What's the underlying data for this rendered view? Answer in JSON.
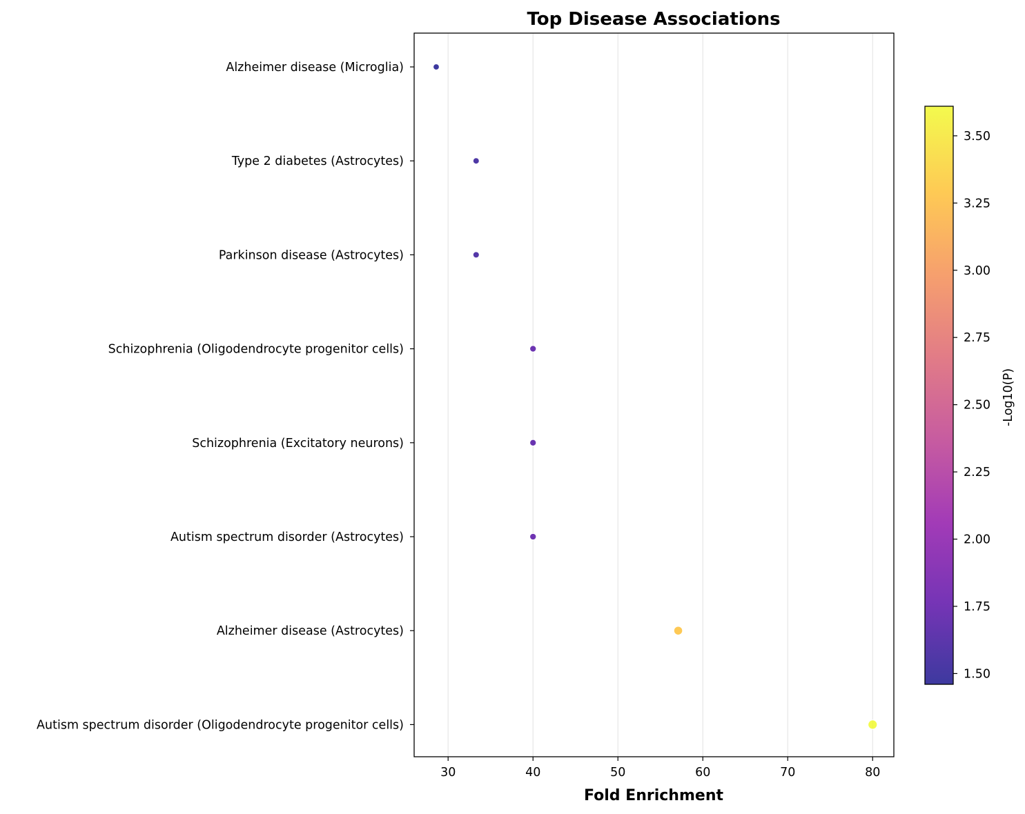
{
  "chart_data": {
    "type": "scatter",
    "title": "Top Disease Associations",
    "xlabel": "Fold Enrichment",
    "ylabel": "",
    "xlim": [
      26.0,
      82.5
    ],
    "xticks": [
      30,
      40,
      50,
      60,
      70,
      80
    ],
    "grid": "vertical",
    "categories": [
      "Alzheimer disease (Microglia)",
      "Type 2 diabetes (Astrocytes)",
      "Parkinson disease (Astrocytes)",
      "Schizophrenia (Oligodendrocyte progenitor cells)",
      "Schizophrenia (Excitatory neurons)",
      "Autism spectrum disorder (Astrocytes)",
      "Alzheimer disease (Astrocytes)",
      "Autism spectrum disorder (Oligodendrocyte progenitor cells)"
    ],
    "points": [
      {
        "category": "Alzheimer disease (Microglia)",
        "x": 28.6,
        "neg_log10_p": 1.46
      },
      {
        "category": "Type 2 diabetes (Astrocytes)",
        "x": 33.3,
        "neg_log10_p": 1.55
      },
      {
        "category": "Parkinson disease (Astrocytes)",
        "x": 33.3,
        "neg_log10_p": 1.58
      },
      {
        "category": "Schizophrenia (Oligodendrocyte progenitor cells)",
        "x": 40.0,
        "neg_log10_p": 1.72
      },
      {
        "category": "Schizophrenia (Excitatory neurons)",
        "x": 40.0,
        "neg_log10_p": 1.7
      },
      {
        "category": "Autism spectrum disorder (Astrocytes)",
        "x": 40.0,
        "neg_log10_p": 1.73
      },
      {
        "category": "Alzheimer disease (Astrocytes)",
        "x": 57.1,
        "neg_log10_p": 3.28
      },
      {
        "category": "Autism spectrum disorder (Oligodendrocyte progenitor cells)",
        "x": 80.0,
        "neg_log10_p": 3.61
      }
    ],
    "colorbar": {
      "label": "-Log10(P)",
      "colormap": "plasma",
      "range": [
        1.46,
        3.61
      ],
      "ticks": [
        "1.50",
        "1.75",
        "2.00",
        "2.25",
        "2.50",
        "2.75",
        "3.00",
        "3.25",
        "3.50"
      ]
    }
  }
}
